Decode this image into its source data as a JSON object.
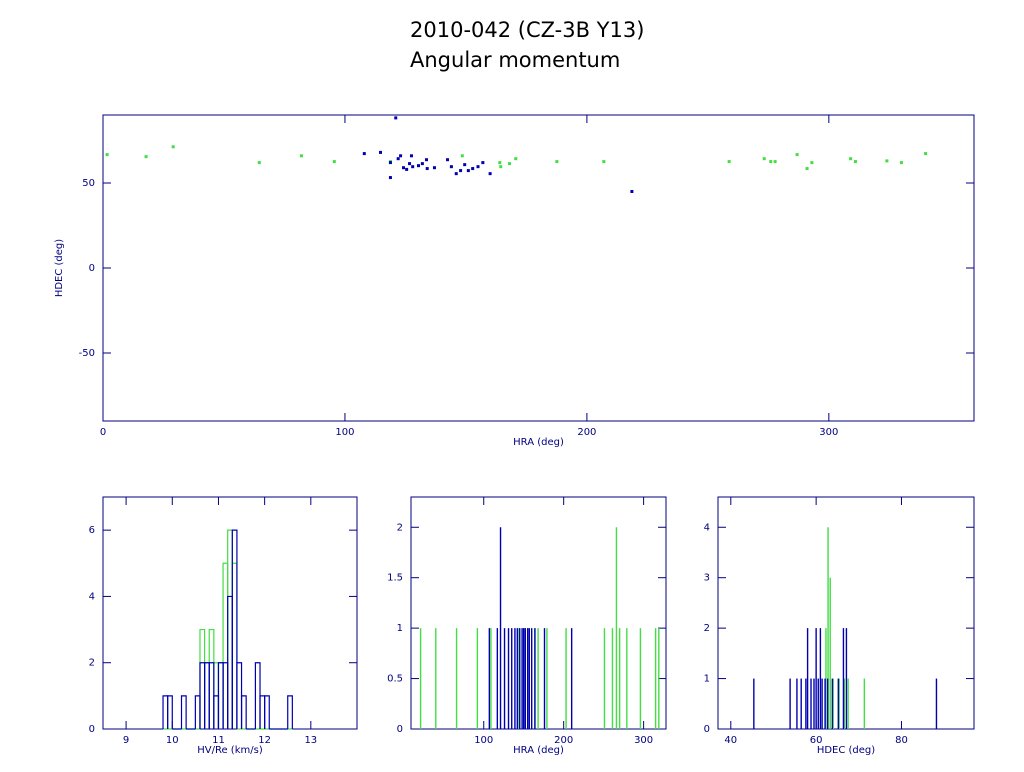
{
  "header": {
    "title": "2010-042 (CZ-3B Y13)",
    "subtitle": "Angular momentum"
  },
  "chart_data": [
    {
      "type": "scatter",
      "xlabel": "HRA (deg)",
      "ylabel": "HDEC (deg)",
      "xlim": [
        0,
        360
      ],
      "xticks": [
        0,
        100,
        200,
        300
      ],
      "ylim": [
        -90,
        90
      ],
      "yticks": [
        -50,
        0,
        50
      ],
      "series": [
        {
          "color": "#44dd44",
          "x": [
            1.7,
            17.8,
            29,
            64.6,
            82,
            95.6,
            118.8,
            148.5,
            164,
            164.4,
            168,
            170.6,
            187.6,
            207,
            258.8,
            273.3,
            276,
            277.8,
            286.9,
            291,
            293,
            309,
            311,
            324,
            330,
            340
          ],
          "values": [
            66.7,
            65.5,
            71.3,
            62,
            66,
            62.6,
            62.6,
            66,
            62,
            59.6,
            61.4,
            64.3,
            62.6,
            62.6,
            62.6,
            64.3,
            62.6,
            62.6,
            66.7,
            58.5,
            62,
            64.3,
            62.6,
            63,
            62,
            67.3
          ]
        },
        {
          "color": "#0000b0",
          "x": [
            121,
            108,
            114.7,
            118.8,
            118.8,
            122,
            123,
            124.2,
            125.5,
            126.7,
            127.5,
            128,
            130.4,
            132,
            133.7,
            134,
            137,
            142.4,
            144,
            146,
            147.8,
            149.5,
            151,
            152.8,
            155,
            157,
            160,
            218.6
          ],
          "values": [
            88.3,
            67.3,
            68,
            62,
            53.2,
            64.3,
            66,
            59,
            58,
            61.4,
            66,
            59.6,
            60.2,
            61.4,
            63.7,
            58.5,
            59,
            63.7,
            59.6,
            55.5,
            57.3,
            60.8,
            57.3,
            58.5,
            59.6,
            62,
            55.5,
            45
          ]
        }
      ]
    },
    {
      "type": "histogram",
      "xlabel": "HV/Re (km/s)",
      "xlim": [
        8.5,
        14
      ],
      "xticks": [
        9,
        10,
        11,
        12,
        13
      ],
      "ylim": [
        0,
        7
      ],
      "yticks": [
        0,
        2,
        4,
        6
      ],
      "bins": [
        9.8,
        9.9,
        10.0,
        10.1,
        10.2,
        10.3,
        10.4,
        10.5,
        10.6,
        10.7,
        10.8,
        10.9,
        11.0,
        11.1,
        11.2,
        11.3,
        11.4,
        11.5,
        11.6,
        11.7,
        11.8,
        11.9,
        12.0,
        12.1,
        12.2,
        12.3,
        12.4,
        12.5,
        12.6
      ],
      "series": [
        {
          "color": "#44dd44",
          "values": [
            0,
            0,
            0,
            0,
            0,
            0,
            0,
            0,
            3,
            2,
            3,
            2,
            2,
            5,
            6,
            5,
            0,
            0,
            0,
            0,
            0,
            0,
            0,
            0,
            0,
            0,
            0,
            0
          ]
        },
        {
          "color": "#0000b0",
          "values": [
            1,
            1,
            0,
            0,
            1,
            0,
            0,
            1,
            2,
            2,
            2,
            1,
            2,
            2,
            4,
            6,
            2,
            1,
            0,
            0,
            2,
            1,
            1,
            0,
            0,
            0,
            0,
            1
          ]
        }
      ]
    },
    {
      "type": "stem",
      "xlabel": "HRA (deg)",
      "xlim": [
        9,
        328
      ],
      "xticks": [
        100,
        200,
        300
      ],
      "ylim": [
        0,
        2.3
      ],
      "yticks": [
        0,
        0.5,
        1,
        1.5,
        2
      ],
      "series": [
        {
          "color": "#44dd44",
          "x": [
            21,
            40,
            66,
            92,
            109,
            144,
            150,
            164,
            168,
            179,
            203,
            251,
            261,
            266,
            270,
            279,
            296,
            315,
            319
          ],
          "values": [
            1,
            1,
            1,
            1,
            1,
            1,
            1,
            1,
            1,
            1,
            1,
            1,
            1,
            2,
            1,
            1,
            1,
            1,
            1
          ]
        },
        {
          "color": "#0000b0",
          "x": [
            107,
            117,
            121,
            126,
            131,
            135,
            139,
            142,
            145,
            148,
            150,
            152,
            155,
            157,
            160,
            164,
            176,
            210
          ],
          "values": [
            1,
            1,
            2,
            1,
            1,
            1,
            1,
            1,
            1,
            1,
            1,
            1,
            1,
            1,
            1,
            1,
            1,
            1
          ]
        }
      ]
    },
    {
      "type": "stem",
      "xlabel": "HDEC (deg)",
      "xlim": [
        37,
        97
      ],
      "xticks": [
        40,
        60,
        80
      ],
      "ylim": [
        0,
        4.6
      ],
      "yticks": [
        0,
        1,
        2,
        3,
        4
      ],
      "series": [
        {
          "color": "#44dd44",
          "x": [
            62.3,
            62.8,
            63.3,
            64,
            65.4,
            66.6,
            67.5,
            71.3
          ],
          "values": [
            2,
            4,
            3,
            1,
            1,
            1,
            1,
            1
          ]
        },
        {
          "color": "#0000b0",
          "x": [
            45.4,
            53.9,
            55.5,
            56.5,
            57.6,
            58,
            58.8,
            59.5,
            60,
            60.5,
            61,
            61.4,
            62.1,
            62.7,
            63.8,
            65.2,
            66.4,
            67.1,
            88.2
          ],
          "values": [
            1,
            1,
            1,
            1,
            1,
            2,
            1,
            1,
            2,
            1,
            2,
            1,
            1,
            1,
            1,
            1,
            2,
            2,
            1
          ]
        }
      ]
    }
  ]
}
